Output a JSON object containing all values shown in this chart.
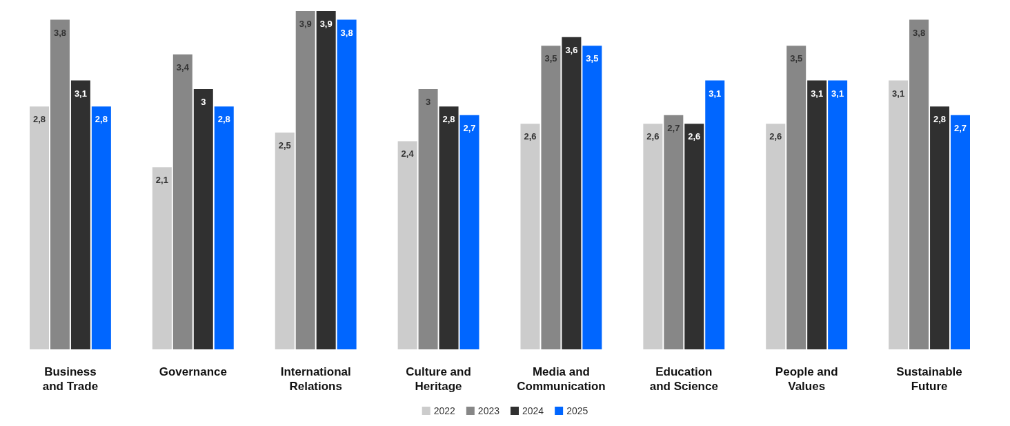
{
  "chart_data": {
    "type": "bar",
    "categories": [
      "Business and Trade",
      "Governance",
      "International Relations",
      "Culture and Heritage",
      "Media and Communication",
      "Education and Science",
      "People and Values",
      "Sustainable Future"
    ],
    "series": [
      {
        "name": "2022",
        "color": "#cccccc",
        "values": [
          2.8,
          2.1,
          2.5,
          2.4,
          2.6,
          2.6,
          2.6,
          3.1
        ],
        "value_labels": [
          "2,8",
          "2,1",
          "2,5",
          "2,4",
          "2,6",
          "2,6",
          "2,6",
          "3,1"
        ]
      },
      {
        "name": "2023",
        "color": "#878787",
        "values": [
          3.8,
          3.4,
          3.9,
          3,
          3.5,
          2.7,
          3.5,
          3.8
        ],
        "value_labels": [
          "3,8",
          "3,4",
          "3,9",
          "3",
          "3,5",
          "2,7",
          "3,5",
          "3,8"
        ]
      },
      {
        "name": "2024",
        "color": "#303030",
        "values": [
          3.1,
          3,
          3.9,
          2.8,
          3.6,
          2.6,
          3.1,
          2.8
        ],
        "value_labels": [
          "3,1",
          "3",
          "3,9",
          "2,8",
          "3,6",
          "2,6",
          "3,1",
          "2,8"
        ]
      },
      {
        "name": "2025",
        "color": "#0066ff",
        "values": [
          2.8,
          2.8,
          3.8,
          2.7,
          3.5,
          3.1,
          3.1,
          2.7
        ],
        "value_labels": [
          "2,8",
          "2,8",
          "3,8",
          "2,7",
          "3,5",
          "3,1",
          "3,1",
          "2,7"
        ]
      }
    ],
    "legend": "bottom"
  }
}
